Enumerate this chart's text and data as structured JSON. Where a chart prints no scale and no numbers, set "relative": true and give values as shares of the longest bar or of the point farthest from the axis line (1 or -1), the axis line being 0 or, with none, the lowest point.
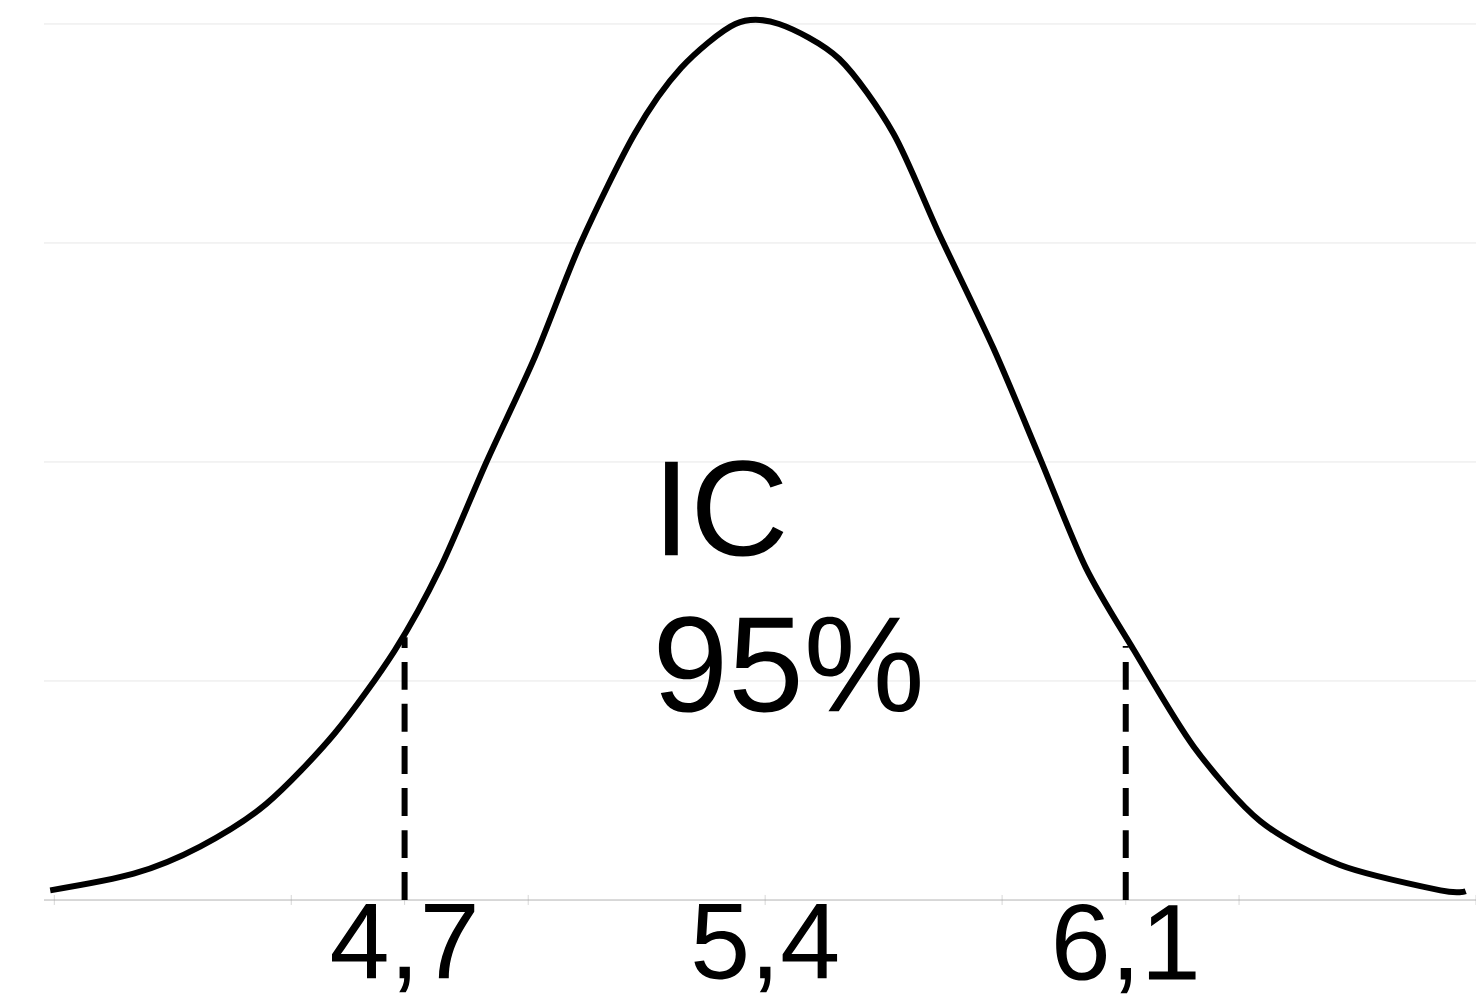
{
  "chart_data": {
    "type": "line",
    "relative": true,
    "grid": "y",
    "marker": "none",
    "xlim": [
      4.0,
      6.78
    ],
    "xticks": [
      {
        "value": 4.02,
        "label": null
      },
      {
        "value": 4.48,
        "label": null
      },
      {
        "value": 4.7,
        "label": "4,7"
      },
      {
        "value": 4.94,
        "label": null
      },
      {
        "value": 5.4,
        "label": "5,4"
      },
      {
        "value": 5.86,
        "label": null
      },
      {
        "value": 6.1,
        "label": "6,1"
      },
      {
        "value": 6.32,
        "label": null
      },
      {
        "value": 6.78,
        "label": null
      }
    ],
    "series": [
      {
        "color": "#000000",
        "line_style": "solid",
        "x": [
          4.012,
          4.174,
          4.303,
          4.432,
          4.564,
          4.681,
          4.77,
          4.859,
          4.953,
          5.042,
          5.147,
          5.237,
          5.342,
          5.427,
          5.544,
          5.649,
          5.738,
          5.843,
          5.933,
          6.022,
          6.116,
          6.232,
          6.361,
          6.516,
          6.711,
          6.76
        ],
        "values": [
          0.011,
          0.03,
          0.061,
          0.11,
          0.19,
          0.285,
          0.38,
          0.5,
          0.62,
          0.75,
          0.875,
          0.95,
          1.0,
          1.0,
          0.96,
          0.875,
          0.76,
          0.63,
          0.505,
          0.38,
          0.285,
          0.175,
          0.09,
          0.04,
          0.011,
          0.01
        ]
      },
      {
        "color": "#000000",
        "line_style": "dashed",
        "x": [
          4.7,
          4.7
        ],
        "values": [
          0,
          0.3
        ]
      },
      {
        "color": "#000000",
        "line_style": "dashed",
        "x": [
          6.1,
          6.1
        ],
        "values": [
          0,
          0.29
        ]
      }
    ],
    "annotations": [
      "IC",
      "95%"
    ]
  }
}
